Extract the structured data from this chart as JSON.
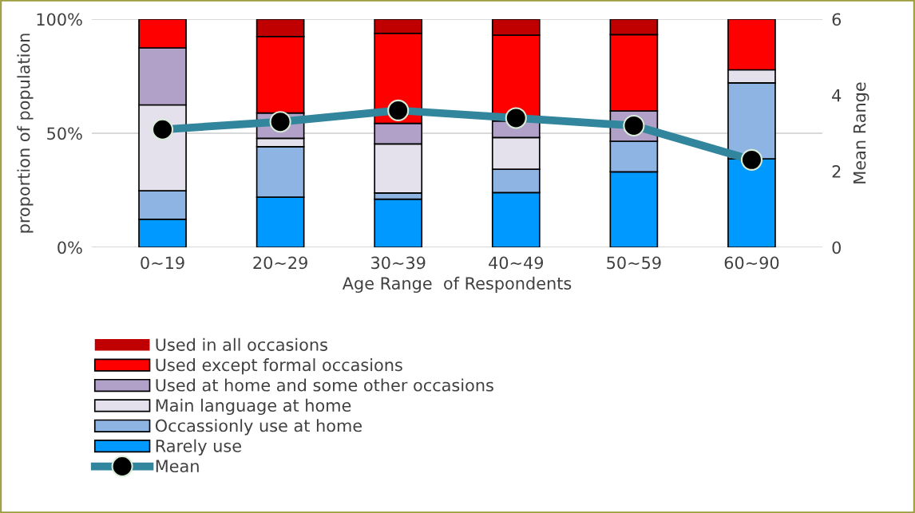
{
  "chart_data": {
    "type": "bar",
    "stacked": true,
    "xlabel": "Age Range  of Respondents",
    "ylabel": "proportion of population",
    "y2label": "Mean Range",
    "categories": [
      "0~19",
      "20~29",
      "30~39",
      "40~49",
      "50~59",
      "60~90"
    ],
    "series": [
      {
        "name": "Rarely use",
        "color": "#0099ff",
        "values": [
          12.3,
          22.0,
          21.1,
          24.0,
          33.1,
          38.8
        ]
      },
      {
        "name": "Occassionly use at home",
        "color": "#8eb4e3",
        "values": [
          12.5,
          22.1,
          2.7,
          10.2,
          13.4,
          33.3
        ]
      },
      {
        "name": "Main language at home",
        "color": "#e4e0ec",
        "values": [
          37.6,
          3.7,
          21.5,
          13.9,
          0,
          5.7
        ]
      },
      {
        "name": "Used at home and some other occasions",
        "color": "#b1a0c7",
        "values": [
          25.0,
          11.1,
          9.0,
          7.3,
          13.3,
          0
        ]
      },
      {
        "name": "Used except formal occasions",
        "color": "#ff0000",
        "values": [
          12.6,
          33.5,
          39.5,
          37.6,
          33.4,
          22.2
        ]
      },
      {
        "name": "Used in all occasions",
        "color": "#c00000",
        "values": [
          0,
          7.6,
          6.2,
          7.0,
          6.8,
          0
        ]
      },
      {
        "name": "Mean",
        "type": "line",
        "axis": "y2",
        "color": "#31859c",
        "marker": "circle",
        "values": [
          3.1,
          3.3,
          3.6,
          3.4,
          3.2,
          2.3
        ]
      }
    ],
    "ylim": [
      0,
      100
    ],
    "yticks": [
      {
        "value": 0,
        "label": "0%"
      },
      {
        "value": 50,
        "label": "50%"
      },
      {
        "value": 100,
        "label": "100%"
      }
    ],
    "y2lim": [
      0,
      6
    ],
    "y2ticks": [
      0,
      2,
      4,
      6
    ],
    "grid": "y",
    "legend": "bottom"
  }
}
